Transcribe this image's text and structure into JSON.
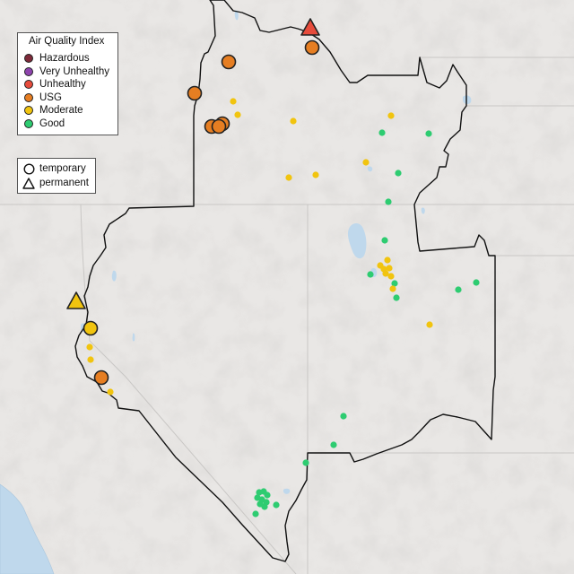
{
  "legend": {
    "title": "Air Quality Index",
    "categories": [
      {
        "label": "Hazardous",
        "color": "#7e2b3a"
      },
      {
        "label": "Very Unhealthy",
        "color": "#8e44ad"
      },
      {
        "label": "Unhealthy",
        "color": "#e74c3c"
      },
      {
        "label": "USG",
        "color": "#e67e22"
      },
      {
        "label": "Moderate",
        "color": "#f1c40f"
      },
      {
        "label": "Good",
        "color": "#2ecc71"
      }
    ],
    "types": [
      {
        "label": "temporary",
        "icon": "circle-icon"
      },
      {
        "label": "permanent",
        "icon": "triangle-icon"
      }
    ]
  },
  "colors": {
    "background": "#e9e7e5",
    "water": "#bfd8ec",
    "boundary": "#111111",
    "state_line": "#c9c7c5"
  }
}
